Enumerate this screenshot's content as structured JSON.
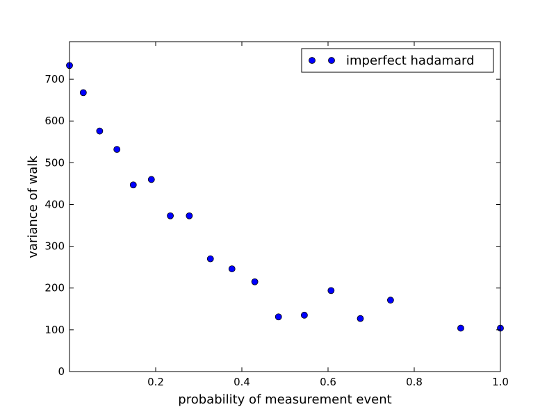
{
  "chart_data": {
    "type": "scatter",
    "title": "",
    "xlabel": "probability of measurement event",
    "ylabel": "variance of walk",
    "xlim": [
      0,
      1.0
    ],
    "ylim": [
      0,
      790
    ],
    "x_ticks": [
      0.2,
      0.4,
      0.6,
      0.8,
      1.0
    ],
    "x_tick_labels": [
      "0.2",
      "0.4",
      "0.6",
      "0.8",
      "1.0"
    ],
    "y_ticks": [
      0,
      100,
      200,
      300,
      400,
      500,
      600,
      700
    ],
    "y_tick_labels": [
      "0",
      "100",
      "200",
      "300",
      "400",
      "500",
      "600",
      "700"
    ],
    "grid": false,
    "legend_position": "top-right",
    "series": [
      {
        "name": "imperfect hadamard",
        "color": "#0000ff",
        "marker": "circle",
        "x": [
          0.0,
          0.032,
          0.07,
          0.11,
          0.148,
          0.19,
          0.234,
          0.278,
          0.327,
          0.377,
          0.43,
          0.485,
          0.545,
          0.607,
          0.675,
          0.745,
          0.908,
          1.0
        ],
        "y": [
          733,
          668,
          576,
          532,
          447,
          460,
          373,
          373,
          270,
          246,
          215,
          131,
          135,
          194,
          127,
          171,
          104,
          104
        ]
      }
    ]
  }
}
